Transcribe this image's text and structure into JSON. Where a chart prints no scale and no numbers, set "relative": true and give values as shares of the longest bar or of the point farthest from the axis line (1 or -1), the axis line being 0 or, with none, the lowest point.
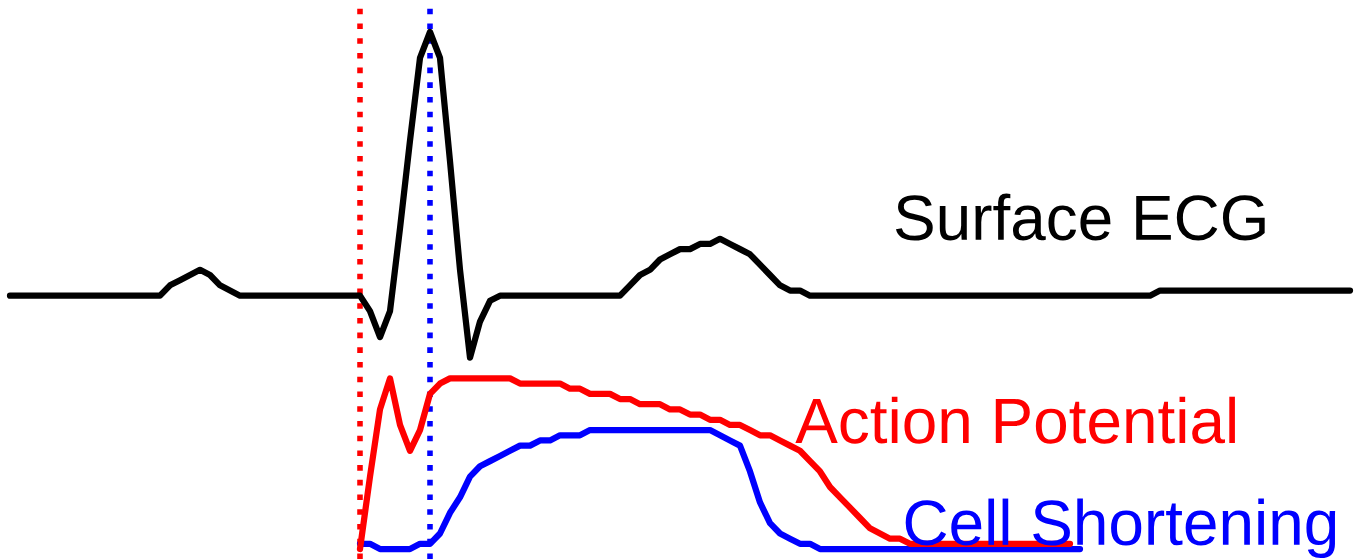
{
  "chart_data": {
    "type": "line",
    "relative": true,
    "marker": "none",
    "line_style": "solid",
    "categories": [
      null,
      null,
      null,
      null,
      null,
      null,
      null,
      null,
      null,
      null,
      null,
      null,
      null,
      null,
      null,
      null,
      null,
      null,
      null,
      null,
      null,
      null,
      null,
      null,
      null,
      null,
      null,
      null,
      null,
      null,
      null,
      null,
      null,
      null,
      null,
      null,
      null,
      null,
      null,
      null,
      null,
      null,
      null,
      null,
      null,
      null,
      null,
      null,
      null,
      null,
      null,
      null,
      null,
      null,
      null,
      null,
      null,
      null,
      null,
      null,
      null,
      null,
      null,
      null,
      null,
      null,
      null,
      null,
      null,
      null,
      null,
      null,
      null,
      null,
      null,
      null,
      null,
      null,
      null,
      null,
      null,
      null,
      null,
      null,
      null,
      null,
      null,
      null,
      null,
      null,
      null,
      null,
      null,
      null,
      null,
      null,
      null,
      null,
      null,
      null,
      null,
      null,
      null,
      null,
      null,
      null,
      null,
      null,
      null,
      null,
      null,
      null,
      null,
      null,
      null,
      null,
      null,
      null,
      null,
      null,
      null,
      null,
      null,
      null,
      null,
      null,
      null,
      null,
      null,
      null,
      null,
      null,
      null,
      null,
      null
    ],
    "series": [
      {
        "name": "Surface ECG",
        "color": "#000000",
        "values": [
          0.49,
          0.49,
          0.49,
          0.49,
          0.49,
          0.49,
          0.49,
          0.49,
          0.49,
          0.49,
          0.49,
          0.49,
          0.49,
          0.49,
          0.49,
          0.49,
          0.51,
          0.52,
          0.53,
          0.54,
          0.53,
          0.51,
          0.5,
          0.49,
          0.49,
          0.49,
          0.49,
          0.49,
          0.49,
          0.49,
          0.49,
          0.49,
          0.49,
          0.49,
          0.49,
          0.49,
          0.46,
          0.41,
          0.46,
          0.62,
          0.79,
          0.95,
          1.0,
          0.95,
          0.75,
          0.54,
          0.37,
          0.44,
          0.48,
          0.49,
          0.49,
          0.49,
          0.49,
          0.49,
          0.49,
          0.49,
          0.49,
          0.49,
          0.49,
          0.49,
          0.49,
          0.49,
          0.51,
          0.53,
          0.54,
          0.56,
          0.57,
          0.58,
          0.58,
          0.59,
          0.59,
          0.6,
          0.59,
          0.58,
          0.57,
          0.55,
          0.53,
          0.51,
          0.5,
          0.5,
          0.49,
          0.49,
          0.49,
          0.49,
          0.49,
          0.49,
          0.49,
          0.49,
          0.49,
          0.49,
          0.49,
          0.49,
          0.49,
          0.49,
          0.49,
          0.49,
          0.49,
          0.49,
          0.49,
          0.49,
          0.49,
          0.49,
          0.49,
          0.49,
          0.49,
          0.49,
          0.49,
          0.49,
          0.49,
          0.49,
          0.49,
          0.49,
          0.49,
          0.49,
          0.49,
          0.5,
          0.5,
          0.5,
          0.5,
          0.5,
          0.5,
          0.5,
          0.5,
          0.5,
          0.5,
          0.5,
          0.5,
          0.5,
          0.5,
          0.5,
          0.5,
          0.5,
          0.5,
          0.5,
          0.5
        ]
      },
      {
        "name": "Action Potential",
        "color": "#ff0000",
        "values": [
          null,
          null,
          null,
          null,
          null,
          null,
          null,
          null,
          null,
          null,
          null,
          null,
          null,
          null,
          null,
          null,
          null,
          null,
          null,
          null,
          null,
          null,
          null,
          null,
          null,
          null,
          null,
          null,
          null,
          null,
          null,
          null,
          null,
          null,
          null,
          0.0,
          0.14,
          0.27,
          0.33,
          0.24,
          0.19,
          0.23,
          0.3,
          0.32,
          0.33,
          0.33,
          0.33,
          0.33,
          0.33,
          0.33,
          0.33,
          0.32,
          0.32,
          0.32,
          0.32,
          0.32,
          0.31,
          0.31,
          0.3,
          0.3,
          0.3,
          0.29,
          0.29,
          0.28,
          0.28,
          0.28,
          0.27,
          0.27,
          0.26,
          0.26,
          0.25,
          0.25,
          0.24,
          0.24,
          0.23,
          0.22,
          0.22,
          0.21,
          0.2,
          0.19,
          0.17,
          0.15,
          0.12,
          0.1,
          0.08,
          0.06,
          0.04,
          0.03,
          0.02,
          0.02,
          0.01,
          0.01,
          0.01,
          0.01,
          0.01,
          0.01,
          0.01,
          0.01,
          0.01,
          0.01,
          0.01,
          0.01,
          0.01,
          0.01,
          0.01,
          0.01,
          0.01,
          null,
          null,
          null,
          null,
          null,
          null,
          null,
          null,
          null,
          null,
          null,
          null,
          null,
          null,
          null,
          null,
          null,
          null,
          null,
          null,
          null,
          null,
          null,
          null,
          null,
          null,
          null,
          null
        ]
      },
      {
        "name": "Cell Shortening",
        "color": "#0000ff",
        "values": [
          null,
          null,
          null,
          null,
          null,
          null,
          null,
          null,
          null,
          null,
          null,
          null,
          null,
          null,
          null,
          null,
          null,
          null,
          null,
          null,
          null,
          null,
          null,
          null,
          null,
          null,
          null,
          null,
          null,
          null,
          null,
          null,
          null,
          null,
          null,
          0.01,
          0.01,
          0.0,
          0.0,
          0.0,
          0.0,
          0.01,
          0.01,
          0.03,
          0.07,
          0.1,
          0.14,
          0.16,
          0.17,
          0.18,
          0.19,
          0.2,
          0.2,
          0.21,
          0.21,
          0.22,
          0.22,
          0.22,
          0.23,
          0.23,
          0.23,
          0.23,
          0.23,
          0.23,
          0.23,
          0.23,
          0.23,
          0.23,
          0.23,
          0.23,
          0.23,
          0.22,
          0.21,
          0.2,
          0.15,
          0.09,
          0.05,
          0.03,
          0.02,
          0.01,
          0.01,
          0.0,
          0.0,
          0.0,
          0.0,
          0.0,
          0.0,
          0.0,
          0.0,
          0.0,
          0.0,
          0.0,
          0.0,
          0.0,
          0.0,
          0.0,
          0.0,
          0.0,
          0.0,
          0.0,
          0.0,
          0.0,
          0.0,
          0.0,
          0.0,
          0.0,
          0.0,
          0.0,
          null,
          null,
          null,
          null,
          null,
          null,
          null,
          null,
          null,
          null,
          null,
          null,
          null,
          null,
          null,
          null,
          null,
          null,
          null,
          null,
          null,
          null,
          null,
          null,
          null,
          null,
          null
        ]
      }
    ]
  }
}
